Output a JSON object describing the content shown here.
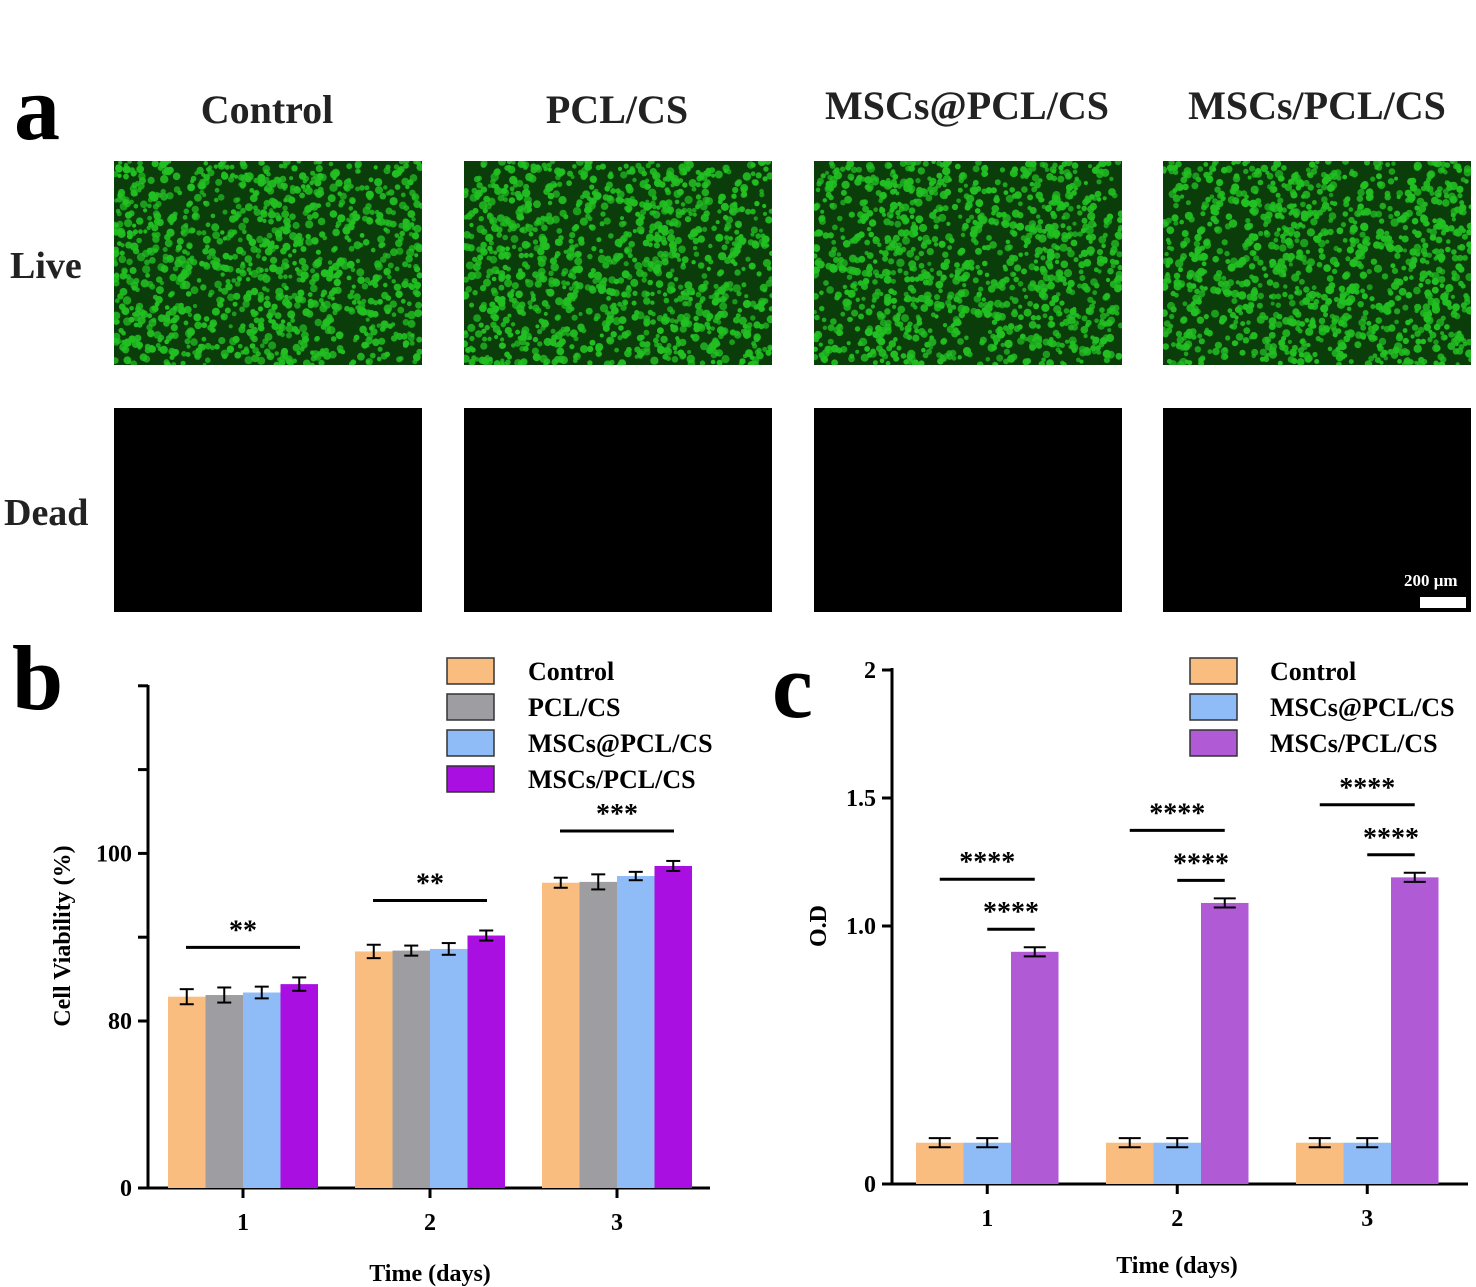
{
  "panel_a": {
    "letter": "a",
    "columns": [
      "Control",
      "PCL/CS",
      "MSCs@PCL/CS",
      "MSCs/PCL/CS"
    ],
    "rows": [
      "Live",
      "Dead"
    ],
    "scale_bar": "200 μm",
    "colors": {
      "live_cells": "#22c022",
      "background": "#000000"
    }
  },
  "chart_data": [
    {
      "type": "bar",
      "panel": "b",
      "categories": [
        "1",
        "2",
        "3"
      ],
      "xlabel": "Time (days)",
      "ylabel": "Cell Viability (%)",
      "ylim": [
        0,
        120
      ],
      "yticks": [
        0,
        80,
        100
      ],
      "yaxis_break": true,
      "legend": "top-right",
      "series": [
        {
          "name": "Control",
          "color": "#f9bd7f",
          "values": [
            82.9,
            88.3,
            96.5
          ],
          "errors": [
            0.9,
            0.8,
            0.6
          ]
        },
        {
          "name": "PCL/CS",
          "color": "#9e9ea2",
          "values": [
            83.1,
            88.4,
            96.6
          ],
          "errors": [
            0.9,
            0.6,
            0.9
          ]
        },
        {
          "name": "MSCs@PCL/CS",
          "color": "#8fbcf7",
          "values": [
            83.4,
            88.6,
            97.3
          ],
          "errors": [
            0.7,
            0.7,
            0.5
          ]
        },
        {
          "name": "MSCs/PCL/CS",
          "color": "#a80fe0",
          "values": [
            84.4,
            90.2,
            98.5
          ],
          "errors": [
            0.8,
            0.6,
            0.6
          ]
        }
      ],
      "annotations": [
        {
          "category": "1",
          "text": "**"
        },
        {
          "category": "2",
          "text": "**"
        },
        {
          "category": "3",
          "text": "***"
        }
      ]
    },
    {
      "type": "bar",
      "panel": "c",
      "categories": [
        "1",
        "2",
        "3"
      ],
      "xlabel": "Time (days)",
      "ylabel": "O.D",
      "ylim": [
        0,
        2
      ],
      "yticks": [
        "0",
        "1.0",
        "1.5",
        "2"
      ],
      "yaxis_break": true,
      "legend": "top-right",
      "series": [
        {
          "name": "Control",
          "color": "#f9bd7f",
          "values": [
            0.16,
            0.16,
            0.16
          ],
          "errors": [
            0.01,
            0.01,
            0.01
          ]
        },
        {
          "name": "MSCs@PCL/CS",
          "color": "#8fbcf7",
          "values": [
            0.16,
            0.16,
            0.16
          ],
          "errors": [
            0.01,
            0.01,
            0.01
          ]
        },
        {
          "name": "MSCs/PCL/CS",
          "color": "#b15ad6",
          "values": [
            0.9,
            1.09,
            1.19
          ],
          "errors": [
            0.01,
            0.01,
            0.01
          ]
        }
      ],
      "annotations": [
        {
          "category": "1",
          "text": "****",
          "level": "upper"
        },
        {
          "category": "1",
          "text": "****",
          "level": "lower"
        },
        {
          "category": "2",
          "text": "****",
          "level": "upper"
        },
        {
          "category": "2",
          "text": "****",
          "level": "lower"
        },
        {
          "category": "3",
          "text": "****",
          "level": "upper"
        },
        {
          "category": "3",
          "text": "****",
          "level": "lower"
        }
      ]
    }
  ]
}
